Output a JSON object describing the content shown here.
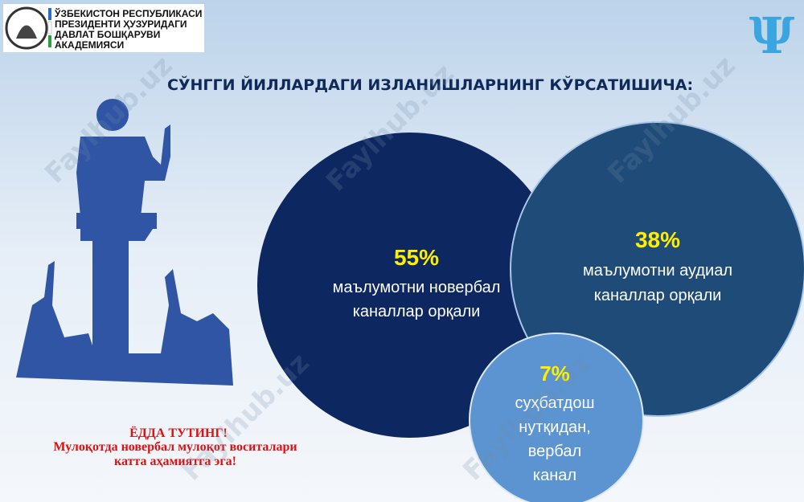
{
  "header": {
    "logo_lines": [
      "ЎЗБЕКИСТОН РЕСПУБЛИКАСИ",
      "ПРЕЗИДЕНТИ ҲУЗУРИДАГИ",
      "ДАВЛАТ БОШҚАРУВИ",
      "АКАДЕМИЯСИ"
    ],
    "icon": "Ψ"
  },
  "title": "СЎНГГИ ЙИЛЛАРДАГИ ИЗЛАНИШЛАРНИНГ КЎРСАТИШИЧА:",
  "circles": [
    {
      "value_label": "55%",
      "lines": [
        "маълумотни новербал",
        "каналлар орқали"
      ]
    },
    {
      "value_label": "38%",
      "lines": [
        "маълумотни аудиал",
        "каналлар орқали"
      ]
    },
    {
      "value_label": "7%",
      "lines": [
        "суҳбатдош",
        "нутқидан,",
        "вербал",
        "канал"
      ]
    }
  ],
  "note": {
    "heading": "ЁДДА ТУТИНГ!",
    "lines": [
      "Мулоқотда новербал мулоқот воситалари",
      "катта аҳамиятга эга!"
    ]
  },
  "watermark": "Faylhub.uz"
}
